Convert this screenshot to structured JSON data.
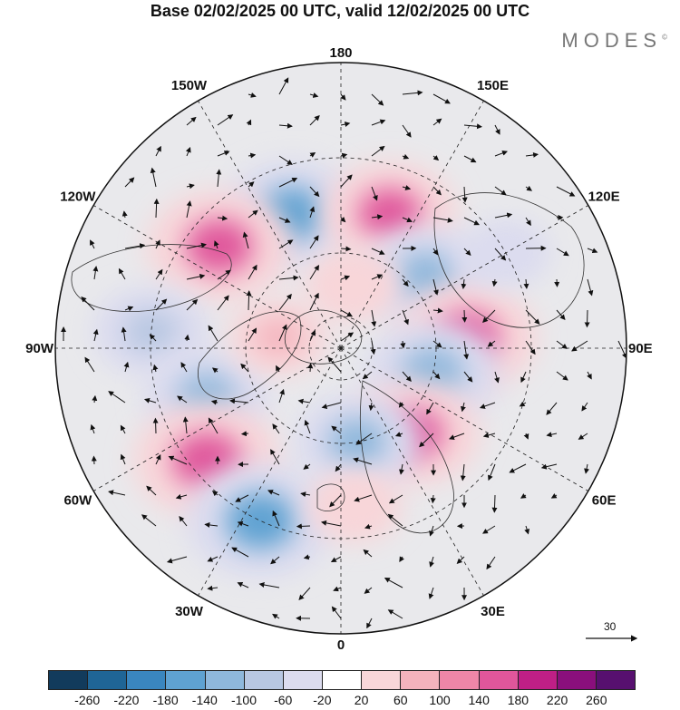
{
  "title": "Base 02/02/2025 00 UTC, valid 12/02/2025 00 UTC",
  "brand": "MODES",
  "brand_mark": "©",
  "longitude_labels": [
    {
      "text": "180",
      "lon": 180
    },
    {
      "text": "150E",
      "lon": 150
    },
    {
      "text": "120E",
      "lon": 120
    },
    {
      "text": "90E",
      "lon": 90
    },
    {
      "text": "60E",
      "lon": 60
    },
    {
      "text": "30E",
      "lon": 30
    },
    {
      "text": "0",
      "lon": 0
    },
    {
      "text": "30W",
      "lon": -30
    },
    {
      "text": "60W",
      "lon": -60
    },
    {
      "text": "90W",
      "lon": -90
    },
    {
      "text": "120W",
      "lon": -120
    },
    {
      "text": "150W",
      "lon": -150
    }
  ],
  "reference_vector_label": "30",
  "colorbar": {
    "labels": [
      "-260",
      "-220",
      "-180",
      "-140",
      "-100",
      "-60",
      "-20",
      "20",
      "60",
      "100",
      "140",
      "180",
      "220",
      "260"
    ],
    "colors": [
      "#123b5c",
      "#1f6596",
      "#3a86bf",
      "#5fa2d2",
      "#8fb8dc",
      "#b8c7e2",
      "#dcdcef",
      "#ffffff",
      "#f8d6d9",
      "#f4b3bd",
      "#ef86a8",
      "#e0569b",
      "#bf1f86",
      "#8a0f7c",
      "#57106f"
    ]
  },
  "anomaly_centers": [
    {
      "lon": -160,
      "lat": 45,
      "value": -150
    },
    {
      "lon": 160,
      "lat": 45,
      "value": 140
    },
    {
      "lon": -130,
      "lat": 40,
      "value": 160
    },
    {
      "lon": 130,
      "lat": 55,
      "value": -130
    },
    {
      "lon": -95,
      "lat": 30,
      "value": -100
    },
    {
      "lon": 95,
      "lat": 50,
      "value": 150
    },
    {
      "lon": -70,
      "lat": 45,
      "value": -120
    },
    {
      "lon": 75,
      "lat": 60,
      "value": -140
    },
    {
      "lon": -50,
      "lat": 35,
      "value": 170
    },
    {
      "lon": 40,
      "lat": 55,
      "value": 140
    },
    {
      "lon": -25,
      "lat": 30,
      "value": -170
    },
    {
      "lon": 10,
      "lat": 60,
      "value": -120
    },
    {
      "lon": -100,
      "lat": 70,
      "value": 60
    },
    {
      "lon": 170,
      "lat": 70,
      "value": 50
    },
    {
      "lon": 5,
      "lat": 40,
      "value": 50
    },
    {
      "lon": 120,
      "lat": 30,
      "value": -40
    }
  ]
}
